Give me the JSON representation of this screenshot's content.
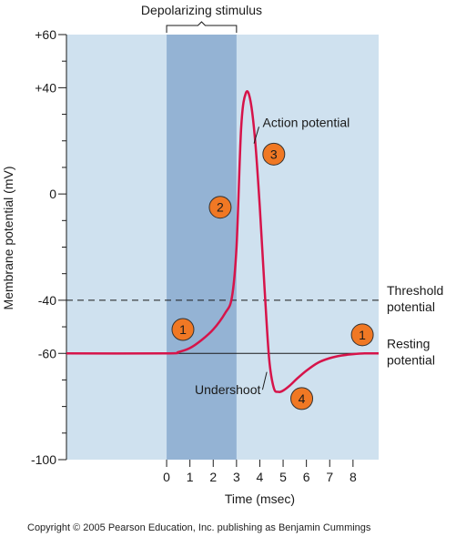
{
  "chart_data": {
    "type": "line",
    "title": "",
    "xlabel": "Time (msec)",
    "ylabel": "Membrane potential (mV)",
    "xlim": [
      -4.3,
      9.1
    ],
    "ylim": [
      -100,
      60
    ],
    "x_ticks": [
      "0",
      "1",
      "2",
      "3",
      "4",
      "5",
      "6",
      "7",
      "8"
    ],
    "x_tick_values": [
      0,
      1,
      2,
      3,
      4,
      5,
      6,
      7,
      8
    ],
    "y_tick_labels": [
      "+60",
      "+40",
      "0",
      "-40",
      "-60",
      "-100"
    ],
    "y_tick_values": [
      60,
      40,
      0,
      -40,
      -60,
      -100
    ],
    "y_minor_tick_values": [
      50,
      30,
      20,
      10,
      -10,
      -20,
      -30,
      -50,
      -70,
      -80,
      -90
    ],
    "grid": false,
    "stimulus": {
      "label": "Depolarizing stimulus",
      "x_start": 0,
      "x_end": 3
    },
    "reference_lines": [
      {
        "name": "threshold",
        "label_line1": "Threshold",
        "label_line2": "potential",
        "y": -40,
        "style": "dashed"
      },
      {
        "name": "resting",
        "label_line1": "Resting",
        "label_line2": "potential",
        "y": -60,
        "style": "solid"
      }
    ],
    "series": [
      {
        "color": "#d6144a",
        "x": [
          -4.3,
          0,
          0.5,
          1.0,
          1.5,
          2.0,
          2.5,
          2.8,
          3.0,
          3.2,
          3.4,
          3.6,
          3.8,
          4.0,
          4.2,
          4.4,
          4.6,
          4.8,
          5.0,
          5.3,
          5.6,
          6.0,
          6.5,
          7.0,
          7.5,
          8.0,
          8.5,
          9.1
        ],
        "y": [
          -60,
          -60,
          -59.5,
          -58,
          -55,
          -51,
          -45,
          -39,
          -20,
          25,
          38,
          35,
          20,
          -5,
          -35,
          -62,
          -73,
          -74.5,
          -74,
          -72,
          -69.5,
          -66.5,
          -63.5,
          -61.8,
          -60.8,
          -60.3,
          -60,
          -60
        ]
      }
    ],
    "annotations": [
      {
        "text": "Action potential",
        "x": 4.9,
        "y": 27
      },
      {
        "text": "Undershoot",
        "x": 3.1,
        "y": -73
      }
    ],
    "phase_markers": [
      {
        "label": "1",
        "x": 0.7,
        "y": -51
      },
      {
        "label": "2",
        "x": 2.3,
        "y": -5
      },
      {
        "label": "3",
        "x": 4.6,
        "y": 15
      },
      {
        "label": "4",
        "x": 5.8,
        "y": -77
      },
      {
        "label": "1",
        "x": 8.4,
        "y": -53
      }
    ],
    "colors": {
      "background": "#cfe1ef",
      "stimulus_band": "#94b3d4",
      "curve": "#d6144a",
      "marker_fill": "#f07824"
    }
  },
  "copyright": "Copyright © 2005 Pearson Education, Inc. publishing as Benjamin Cummings"
}
